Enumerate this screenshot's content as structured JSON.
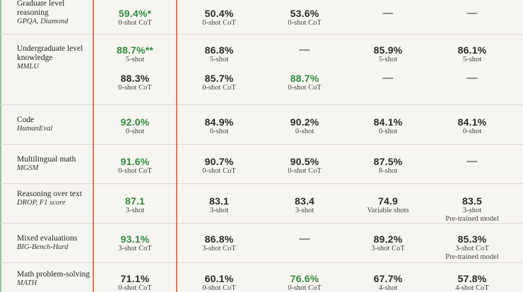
{
  "rows": [
    {
      "name": "Graduate level reasoning",
      "sub": "GPQA, Diamond",
      "lines": [
        [
          {
            "v": "59.4%*",
            "n": "0-shot CoT",
            "g": true
          },
          {
            "v": "50.4%",
            "n": "0-shot CoT"
          },
          {
            "v": "53.6%",
            "n": "0-shot CoT"
          },
          {
            "v": "—",
            "n": ""
          },
          {
            "v": "—",
            "n": ""
          }
        ]
      ]
    },
    {
      "name": "Undergraduate level knowledge",
      "sub": "MMLU",
      "lines": [
        [
          {
            "v": "88.7%**",
            "n": "5-shot",
            "g": true
          },
          {
            "v": "86.8%",
            "n": "5-shot"
          },
          {
            "v": "—",
            "n": ""
          },
          {
            "v": "85.9%",
            "n": "5-shot"
          },
          {
            "v": "86.1%",
            "n": "5-shot"
          }
        ],
        [
          {
            "v": "88.3%",
            "n": "0-shot CoT"
          },
          {
            "v": "85.7%",
            "n": "0-shot CoT"
          },
          {
            "v": "88.7%",
            "n": "0-shot CoT",
            "g": true
          },
          {
            "v": "—",
            "n": ""
          },
          {
            "v": "—",
            "n": ""
          }
        ]
      ]
    },
    {
      "name": "Code",
      "sub": "HumanEval",
      "lines": [
        [
          {
            "v": "92.0%",
            "n": "0-shot",
            "g": true
          },
          {
            "v": "84.9%",
            "n": "0-shot"
          },
          {
            "v": "90.2%",
            "n": "0-shot"
          },
          {
            "v": "84.1%",
            "n": "0-shot"
          },
          {
            "v": "84.1%",
            "n": "0-shot"
          }
        ]
      ]
    },
    {
      "name": "Multilingual math",
      "sub": "MGSM",
      "lines": [
        [
          {
            "v": "91.6%",
            "n": "0-shot CoT",
            "g": true
          },
          {
            "v": "90.7%",
            "n": "0-shot CoT"
          },
          {
            "v": "90.5%",
            "n": "0-shot CoT"
          },
          {
            "v": "87.5%",
            "n": "8-shot"
          },
          {
            "v": "—",
            "n": ""
          }
        ]
      ]
    },
    {
      "name": "Reasoning over text",
      "sub": "DROP, F1 score",
      "lines": [
        [
          {
            "v": "87.1",
            "n": "3-shot",
            "g": true
          },
          {
            "v": "83.1",
            "n": "3-shot"
          },
          {
            "v": "83.4",
            "n": "3-shot"
          },
          {
            "v": "74.9",
            "n": "Variable shots"
          },
          {
            "v": "83.5",
            "n": "3-shot",
            "n2": "Pre-trained model"
          }
        ]
      ]
    },
    {
      "name": "Mixed evaluations",
      "sub": "BIG-Bench-Hard",
      "lines": [
        [
          {
            "v": "93.1%",
            "n": "3-shot CoT",
            "g": true
          },
          {
            "v": "86.8%",
            "n": "3-shot CoT"
          },
          {
            "v": "—",
            "n": ""
          },
          {
            "v": "89.2%",
            "n": "3-shot CoT"
          },
          {
            "v": "85.3%",
            "n": "3-shot CoT",
            "n2": "Pre-trained model"
          }
        ]
      ]
    },
    {
      "name": "Math problem-solving",
      "sub": "MATH",
      "lines": [
        [
          {
            "v": "71.1%",
            "n": "0-shot CoT"
          },
          {
            "v": "60.1%",
            "n": "0-shot CoT"
          },
          {
            "v": "76.6%",
            "n": "0-shot CoT",
            "g": true
          },
          {
            "v": "67.7%",
            "n": "4-shot"
          },
          {
            "v": "57.8%",
            "n": "4-shot CoT"
          }
        ]
      ]
    }
  ]
}
